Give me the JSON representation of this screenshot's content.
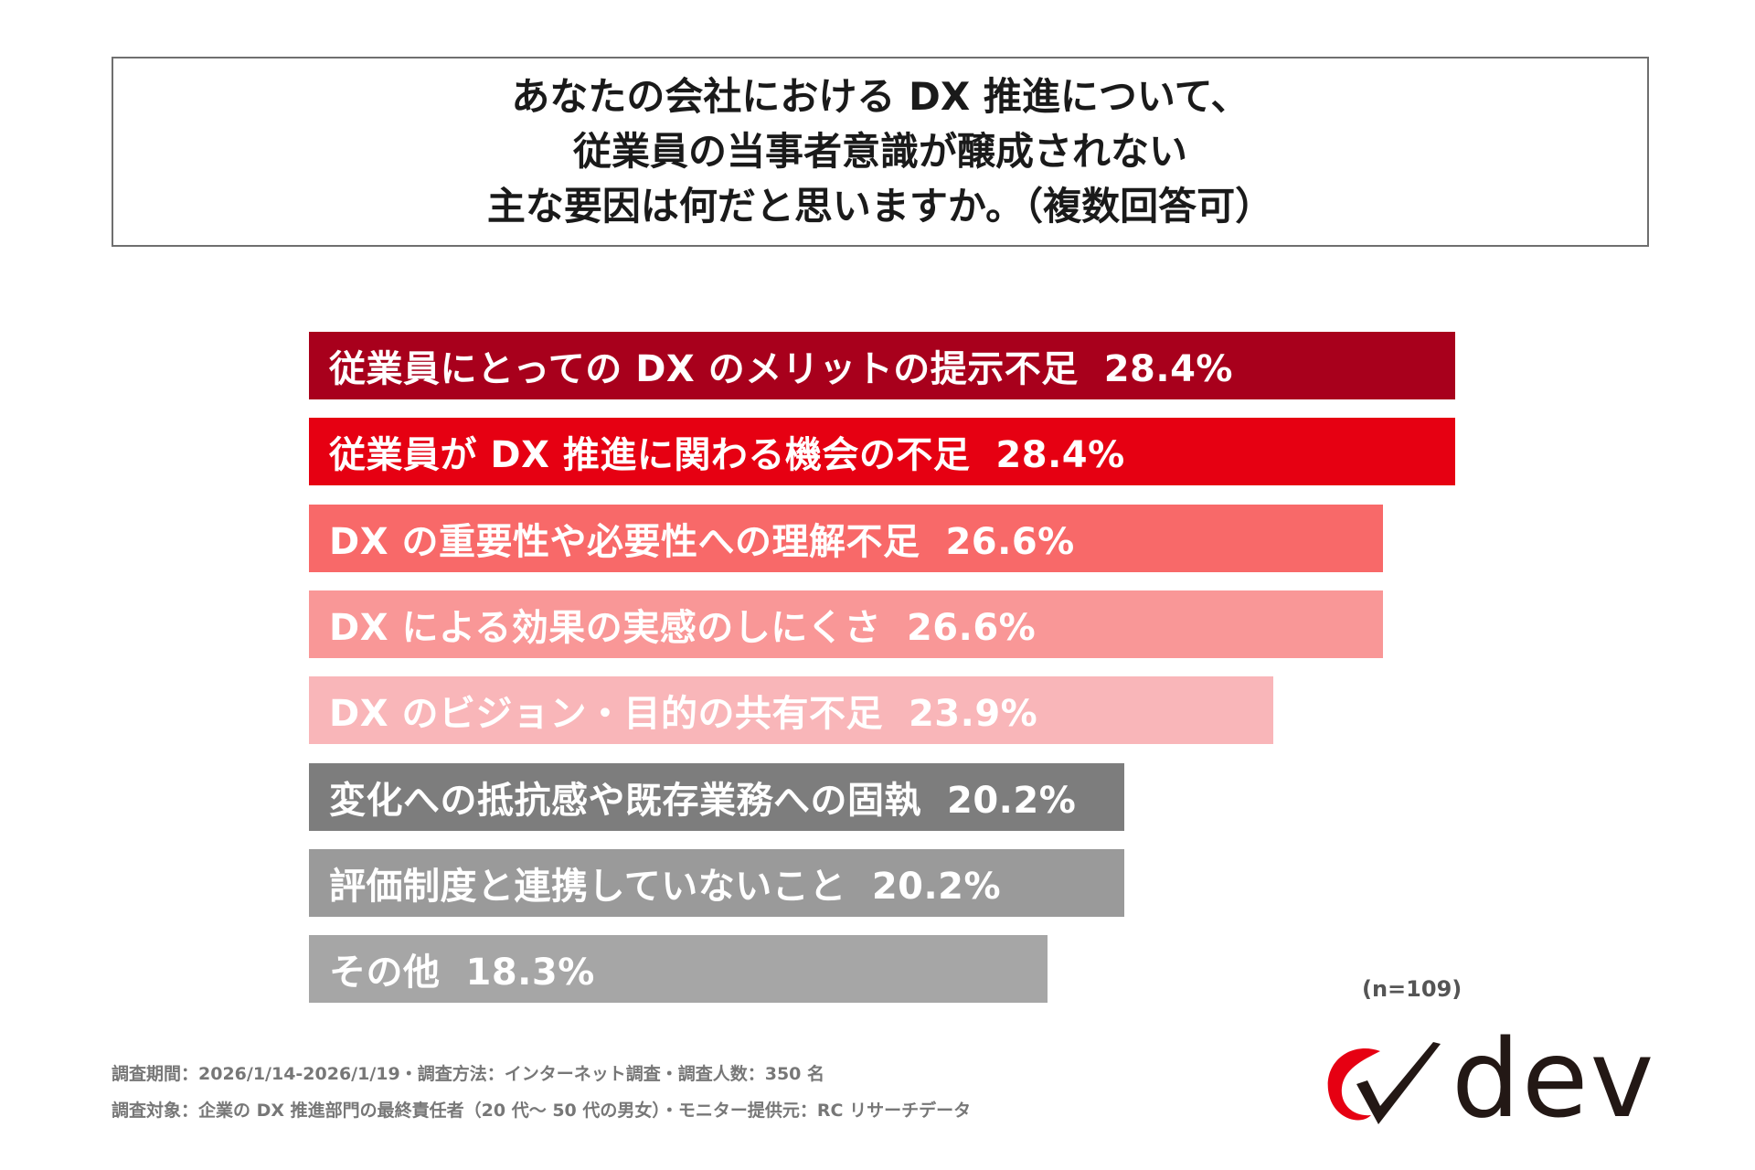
{
  "title_lines": [
    "あなたの会社における DX 推進について、",
    "従業員の当事者意識が醸成されない",
    "主な要因は何だと思いますか。（複数回答可）"
  ],
  "chart_data": {
    "type": "bar",
    "orientation": "horizontal",
    "title": "あなたの会社における DX 推進について、従業員の当事者意識が醸成されない主な要因は何だと思いますか。（複数回答可）",
    "xlim": [
      0,
      28.4
    ],
    "categories": [
      "従業員にとっての DX のメリットの提示不足",
      "従業員が DX 推進に関わる機会の不足",
      "DX の重要性や必要性への理解不足",
      "DX による効果の実感のしにくさ",
      "DX のビジョン・目的の共有不足",
      "変化への抵抗感や既存業務への固執",
      "評価制度と連携していないこと",
      "その他"
    ],
    "values": [
      28.4,
      28.4,
      26.6,
      26.6,
      23.9,
      20.2,
      20.2,
      18.3
    ],
    "value_labels": [
      "28.4%",
      "28.4%",
      "26.6%",
      "26.6%",
      "23.9%",
      "20.2%",
      "20.2%",
      "18.3%"
    ],
    "colors": [
      "#a8001c",
      "#e60012",
      "#f86969",
      "#f99797",
      "#f9b6b9",
      "#7d7d7d",
      "#9a9a9a",
      "#a6a6a6"
    ]
  },
  "sample_size": "(n=109)",
  "footnotes": [
    "調査期間：2026/1/14-2026/1/19・調査方法：インターネット調査・調査人数：350 名",
    "調査対象：企業の DX 推進部門の最終責任者（20 代～ 50 代の男女）・モニター提供元：RC リサーチデータ"
  ],
  "logo": {
    "text": "dev",
    "mark_icon": "check-swoosh-icon",
    "mark_colors": [
      "#e60012",
      "#231815"
    ]
  }
}
